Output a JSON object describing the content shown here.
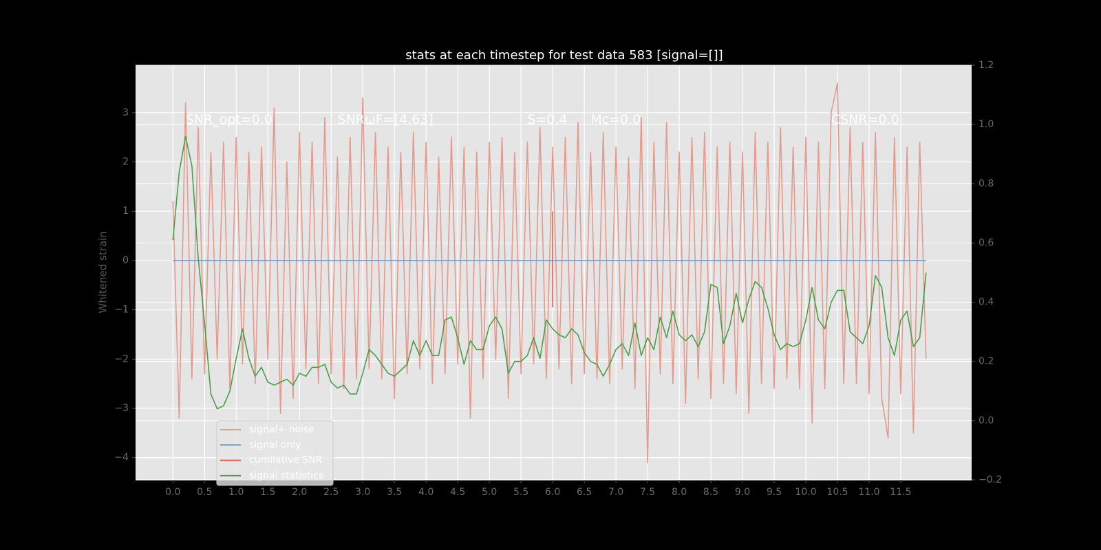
{
  "chart_data": {
    "type": "line",
    "title": "stats at each timestep for test data 583 [signal=[]]",
    "ylabel": "Whitened strain",
    "x": [
      0.0,
      0.1,
      0.2,
      0.3,
      0.4,
      0.5,
      0.6,
      0.7,
      0.8,
      0.9,
      1.0,
      1.1,
      1.2,
      1.3,
      1.4,
      1.5,
      1.6,
      1.7,
      1.8,
      1.9,
      2.0,
      2.1,
      2.2,
      2.3,
      2.4,
      2.5,
      2.6,
      2.7,
      2.8,
      2.9,
      3.0,
      3.1,
      3.2,
      3.3,
      3.4,
      3.5,
      3.6,
      3.7,
      3.8,
      3.9,
      4.0,
      4.1,
      4.2,
      4.3,
      4.4,
      4.5,
      4.6,
      4.7,
      4.8,
      4.9,
      5.0,
      5.1,
      5.2,
      5.3,
      5.4,
      5.5,
      5.6,
      5.7,
      5.8,
      5.9,
      6.0,
      6.1,
      6.2,
      6.3,
      6.4,
      6.5,
      6.6,
      6.7,
      6.8,
      6.9,
      7.0,
      7.1,
      7.2,
      7.3,
      7.4,
      7.5,
      7.6,
      7.7,
      7.8,
      7.9,
      8.0,
      8.1,
      8.2,
      8.3,
      8.4,
      8.5,
      8.6,
      8.7,
      8.8,
      8.9,
      9.0,
      9.1,
      9.2,
      9.3,
      9.4,
      9.5,
      9.6,
      9.7,
      9.8,
      9.9,
      10.0,
      10.1,
      10.2,
      10.3,
      10.4,
      10.5,
      10.6,
      10.7,
      10.8,
      10.9,
      11.0,
      11.1,
      11.2,
      11.3,
      11.4,
      11.5,
      11.6,
      11.7,
      11.8,
      11.9
    ],
    "series": [
      {
        "name": "signal+ noise",
        "color": "#e49a8c",
        "values": [
          1.2,
          -3.2,
          3.2,
          -2.4,
          2.7,
          -2.3,
          2.2,
          -2.0,
          2.4,
          -2.6,
          2.5,
          -2.1,
          2.2,
          -2.5,
          2.3,
          -2.0,
          3.1,
          -3.1,
          2.0,
          -2.8,
          2.6,
          -2.2,
          2.4,
          -2.5,
          2.9,
          -2.3,
          2.1,
          -2.6,
          2.5,
          -2.4,
          3.3,
          -2.2,
          2.6,
          -2.4,
          2.3,
          -2.8,
          2.2,
          -2.3,
          2.6,
          -2.2,
          2.4,
          -2.5,
          2.1,
          -2.3,
          2.5,
          -2.1,
          2.3,
          -3.2,
          2.2,
          -2.4,
          2.4,
          -2.0,
          2.5,
          -2.8,
          2.2,
          -2.3,
          2.4,
          -2.1,
          2.7,
          -2.4,
          2.3,
          -2.2,
          2.5,
          -2.5,
          2.8,
          -2.3,
          2.2,
          -2.4,
          2.6,
          -2.5,
          2.3,
          -2.2,
          2.1,
          -2.6,
          2.9,
          -4.1,
          2.4,
          -2.3,
          2.8,
          -2.5,
          2.2,
          -2.9,
          2.5,
          -2.4,
          2.6,
          -2.8,
          2.3,
          -2.5,
          2.4,
          -2.7,
          2.2,
          -3.1,
          2.6,
          -2.5,
          2.4,
          -2.6,
          2.7,
          -2.4,
          2.3,
          -2.6,
          2.5,
          -3.3,
          2.4,
          -2.6,
          3.0,
          3.6,
          -2.5,
          2.7,
          -2.5,
          2.4,
          -2.7,
          2.6,
          -2.8,
          -3.6,
          2.5,
          -2.7,
          2.3,
          -3.5,
          2.4,
          -2.0
        ]
      },
      {
        "name": "signal only",
        "color": "#7a9cbf",
        "x": [
          0.0,
          11.9
        ],
        "values": [
          0,
          0
        ]
      },
      {
        "name": "cumilative SNR",
        "color": "#e0604a",
        "x": [
          6.0,
          6.0
        ],
        "values": [
          -0.95,
          1.0
        ]
      },
      {
        "name": "signal statistics",
        "color": "#4a9e4a",
        "axis": "y2",
        "values": [
          0.61,
          0.84,
          0.96,
          0.86,
          0.55,
          0.33,
          0.09,
          0.04,
          0.05,
          0.1,
          0.21,
          0.31,
          0.21,
          0.15,
          0.18,
          0.13,
          0.12,
          0.13,
          0.14,
          0.12,
          0.16,
          0.15,
          0.18,
          0.18,
          0.19,
          0.13,
          0.11,
          0.12,
          0.09,
          0.09,
          0.16,
          0.24,
          0.22,
          0.19,
          0.16,
          0.15,
          0.17,
          0.19,
          0.27,
          0.22,
          0.27,
          0.22,
          0.22,
          0.34,
          0.35,
          0.28,
          0.19,
          0.27,
          0.24,
          0.24,
          0.32,
          0.35,
          0.31,
          0.16,
          0.2,
          0.2,
          0.22,
          0.28,
          0.21,
          0.34,
          0.31,
          0.29,
          0.28,
          0.31,
          0.29,
          0.23,
          0.2,
          0.19,
          0.15,
          0.19,
          0.24,
          0.26,
          0.22,
          0.33,
          0.22,
          0.28,
          0.24,
          0.35,
          0.28,
          0.37,
          0.29,
          0.27,
          0.29,
          0.25,
          0.3,
          0.46,
          0.45,
          0.26,
          0.32,
          0.43,
          0.33,
          0.41,
          0.47,
          0.45,
          0.38,
          0.29,
          0.24,
          0.26,
          0.25,
          0.26,
          0.34,
          0.45,
          0.34,
          0.31,
          0.4,
          0.44,
          0.44,
          0.3,
          0.28,
          0.26,
          0.32,
          0.49,
          0.45,
          0.28,
          0.22,
          0.34,
          0.37,
          0.25,
          0.28,
          0.5
        ]
      }
    ],
    "xlim": [
      -0.59,
      12.62
    ],
    "ylim": [
      -4.45,
      3.96
    ],
    "y2lim": [
      -0.2,
      1.2
    ],
    "xticks": [
      {
        "value": 0.0,
        "label": "0.0"
      },
      0.5,
      {
        "value": 1.0,
        "label": "1.0"
      },
      1.5,
      {
        "value": 2.0,
        "label": "2.0"
      },
      2.5,
      {
        "value": 3.0,
        "label": "3.0"
      },
      3.5,
      {
        "value": 4.0,
        "label": "4.0"
      },
      4.5,
      {
        "value": 5.0,
        "label": "5.0"
      },
      5.5,
      {
        "value": 6.0,
        "label": "6.0"
      },
      6.5,
      {
        "value": 7.0,
        "label": "7.0"
      },
      7.5,
      {
        "value": 8.0,
        "label": "8.0"
      },
      8.5,
      {
        "value": 9.0,
        "label": "9.0"
      },
      9.5,
      {
        "value": 10.0,
        "label": "10.0"
      },
      10.5,
      {
        "value": 11.0,
        "label": "11.0"
      },
      11.5
    ],
    "yticks": [
      {
        "value": -4,
        "label": "−4"
      },
      {
        "value": -3,
        "label": "−3"
      },
      {
        "value": -2,
        "label": "−2"
      },
      {
        "value": -1,
        "label": "−1"
      },
      0,
      1,
      2,
      3
    ],
    "y2ticks": [
      {
        "value": -0.2,
        "label": "−0.2"
      },
      {
        "value": 0.0,
        "label": "0.0"
      },
      0.2,
      0.4,
      0.6,
      0.8,
      {
        "value": 1.0,
        "label": "1.0"
      },
      1.2
    ],
    "grid": true,
    "annotations": [
      {
        "text": "SNR_opt=0.0",
        "x": 0.2,
        "y": 2.85
      },
      {
        "text": "SNRωF=[4.63]",
        "x": 2.6,
        "y": 2.85
      },
      {
        "text": "S=0.4",
        "x": 5.6,
        "y": 2.85
      },
      {
        "text": "Mc=0.0",
        "x": 6.6,
        "y": 2.85
      },
      {
        "text": "CSNR=0.0",
        "x": 10.4,
        "y": 2.85
      }
    ]
  }
}
